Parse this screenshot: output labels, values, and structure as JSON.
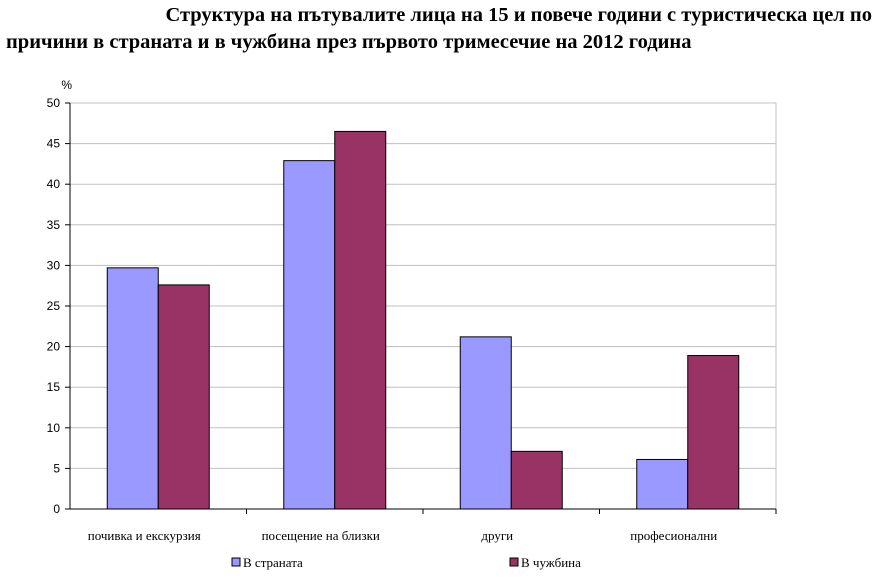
{
  "chart_data": {
    "type": "bar",
    "title_line1": "Структура на пътувалите лица на 15 и повече години с туристическа цел по",
    "title_line2": "причини в страната и в чужбина през първото тримесечие на 2012 година",
    "ylabel": "%",
    "ylim": [
      0,
      50
    ],
    "yticks": [
      0,
      5,
      10,
      15,
      20,
      25,
      30,
      35,
      40,
      45,
      50
    ],
    "grid": true,
    "legend_position": "bottom",
    "categories": [
      "почивка и  екскурзия",
      "посещение на близки",
      "други",
      "професионални"
    ],
    "series": [
      {
        "name": "В страната",
        "color": "#9999ff",
        "values": [
          29.7,
          42.9,
          21.2,
          6.1
        ]
      },
      {
        "name": "В чужбина",
        "color": "#993366",
        "values": [
          27.6,
          46.5,
          7.1,
          18.9
        ]
      }
    ]
  }
}
